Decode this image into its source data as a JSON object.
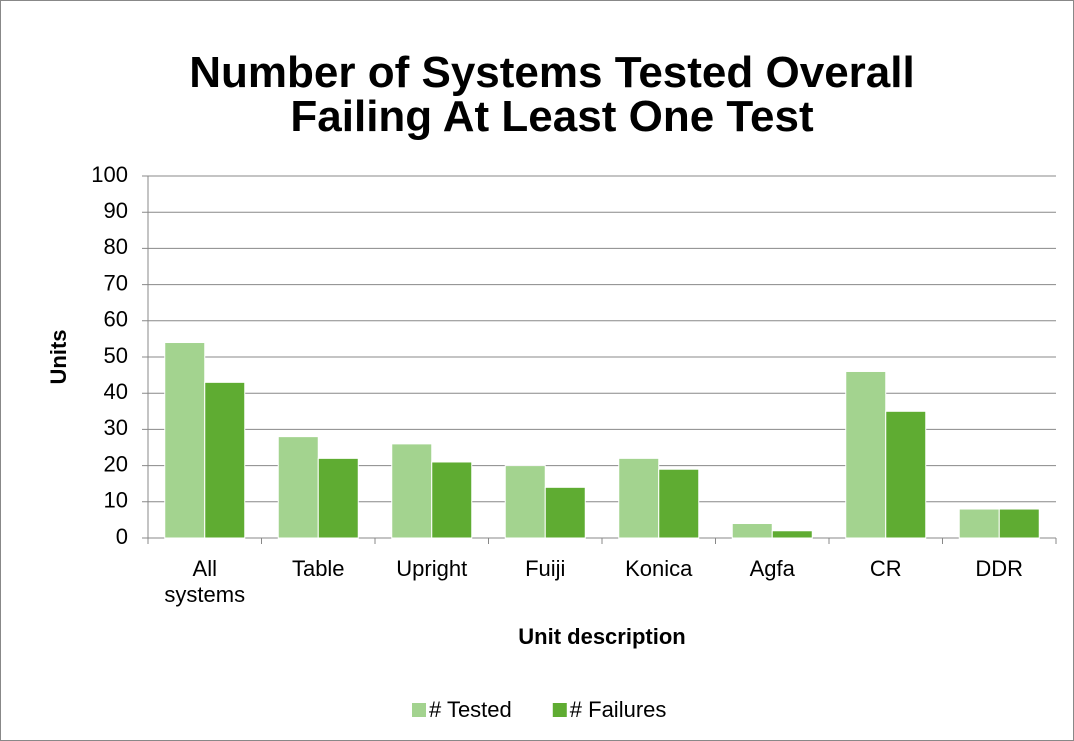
{
  "chart_data": {
    "type": "bar",
    "title": "Number of Systems Tested Overall Failing At Least One Test",
    "x_label": "Unit description",
    "y_label": "Units",
    "categories": [
      "All systems",
      "Table",
      "Upright",
      "Fuiji",
      "Konica",
      "Agfa",
      "CR",
      "DDR"
    ],
    "series": [
      {
        "name": "# Tested",
        "color": "#a3d38f",
        "values": [
          54,
          28,
          26,
          20,
          22,
          4,
          46,
          8
        ]
      },
      {
        "name": "# Failures",
        "color": "#5fac32",
        "values": [
          43,
          22,
          21,
          14,
          19,
          2,
          35,
          8
        ]
      }
    ],
    "ylim": [
      0,
      100
    ],
    "yticks": [
      0,
      10,
      20,
      30,
      40,
      50,
      60,
      70,
      80,
      90,
      100
    ],
    "grid": true,
    "legend": "bottom"
  }
}
